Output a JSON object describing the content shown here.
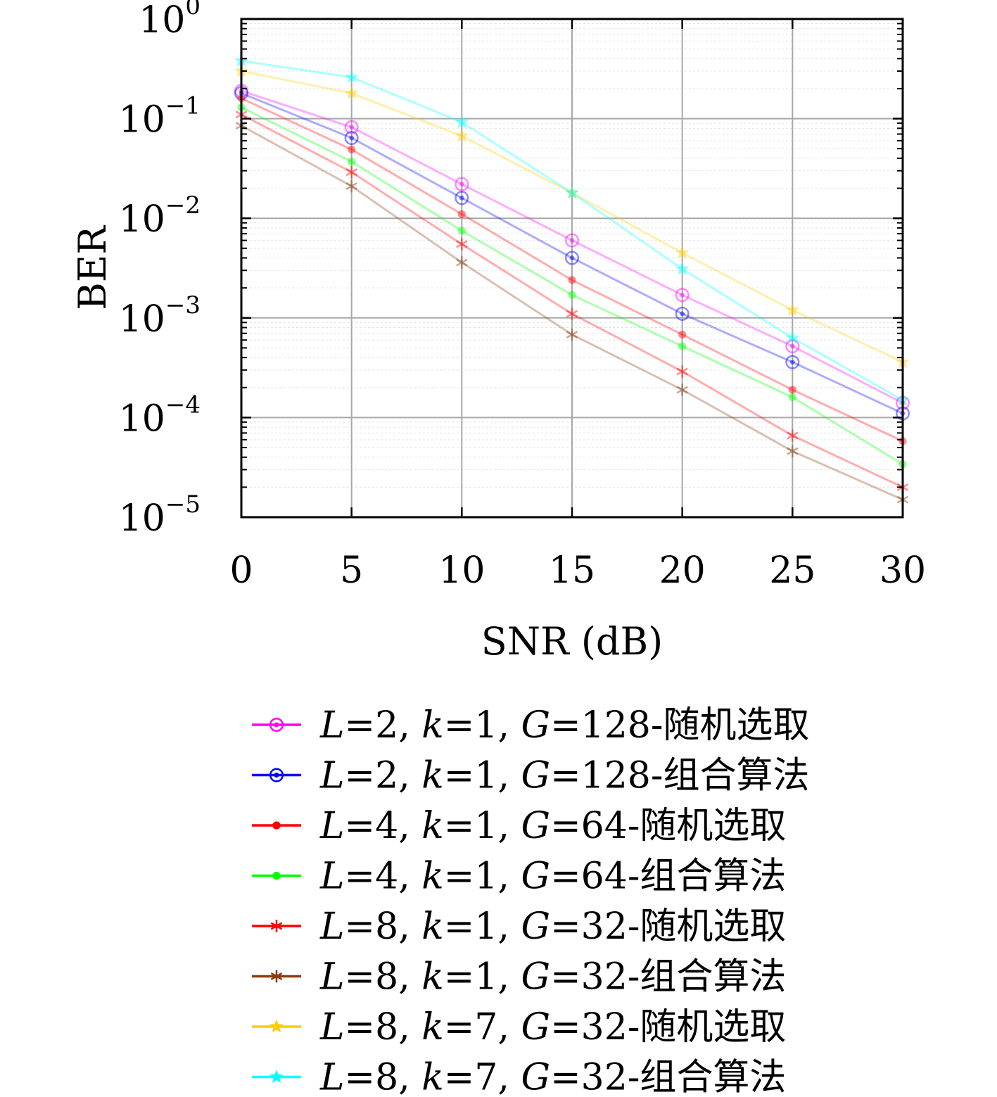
{
  "chart_data": {
    "type": "line",
    "title": "",
    "xlabel": "SNR (dB)",
    "ylabel": "BER",
    "xlim": [
      0,
      30
    ],
    "ylim": [
      1e-05,
      1
    ],
    "yscale": "log",
    "grid": true,
    "legend_position": "below",
    "x": [
      0,
      5,
      10,
      15,
      20,
      25,
      30
    ],
    "x_tick_labels": [
      "0",
      "5",
      "10",
      "15",
      "20",
      "25",
      "30"
    ],
    "y_ticks": [
      {
        "base": "10",
        "exp": "0",
        "value": 1
      },
      {
        "base": "10",
        "exp": "−1",
        "value": 0.1
      },
      {
        "base": "10",
        "exp": "−2",
        "value": 0.01
      },
      {
        "base": "10",
        "exp": "−3",
        "value": 0.001
      },
      {
        "base": "10",
        "exp": "−4",
        "value": 0.0001
      },
      {
        "base": "10",
        "exp": "−5",
        "value": 1e-05
      }
    ],
    "series": [
      {
        "name": "L=2, k=1, G=128-随机选取",
        "L": "2",
        "k": "1",
        "G": "128",
        "method": "随机选取",
        "color": "#ff00ff",
        "marker": "circle",
        "values": [
          0.19,
          0.082,
          0.022,
          0.006,
          0.0017,
          0.00052,
          0.00014
        ]
      },
      {
        "name": "L=2, k=1, G=128-组合算法",
        "L": "2",
        "k": "1",
        "G": "128",
        "method": "组合算法",
        "color": "#0000ff",
        "marker": "circle",
        "values": [
          0.18,
          0.064,
          0.016,
          0.004,
          0.0011,
          0.00036,
          0.00011
        ]
      },
      {
        "name": "L=4, k=1, G=64-随机选取",
        "L": "4",
        "k": "1",
        "G": "64",
        "method": "随机选取",
        "color": "#ff0000",
        "marker": "dot",
        "values": [
          0.16,
          0.049,
          0.011,
          0.0024,
          0.00068,
          0.00019,
          5.8e-05
        ]
      },
      {
        "name": "L=4, k=1, G=64-组合算法",
        "L": "4",
        "k": "1",
        "G": "64",
        "method": "组合算法",
        "color": "#00ff00",
        "marker": "dot",
        "values": [
          0.13,
          0.037,
          0.0075,
          0.0017,
          0.00052,
          0.00016,
          3.4e-05
        ]
      },
      {
        "name": "L=8, k=1, G=32-随机选取",
        "L": "8",
        "k": "1",
        "G": "32",
        "method": "随机选取",
        "color": "#ff0000",
        "marker": "asterisk",
        "values": [
          0.11,
          0.029,
          0.0055,
          0.0011,
          0.00029,
          6.6e-05,
          2e-05
        ]
      },
      {
        "name": "L=8, k=1, G=32-组合算法",
        "L": "8",
        "k": "1",
        "G": "32",
        "method": "组合算法",
        "color": "#8b3a0f",
        "marker": "asterisk",
        "values": [
          0.085,
          0.021,
          0.0036,
          0.00068,
          0.00019,
          4.6e-05,
          1.5e-05
        ]
      },
      {
        "name": "L=8, k=7, G=32-随机选取",
        "L": "8",
        "k": "7",
        "G": "32",
        "method": "随机选取",
        "color": "#ffcc00",
        "marker": "star",
        "values": [
          0.3,
          0.18,
          0.067,
          0.018,
          0.0045,
          0.0012,
          0.00036
        ]
      },
      {
        "name": "L=8, k=7, G=32-组合算法",
        "L": "8",
        "k": "7",
        "G": "32",
        "method": "组合算法",
        "color": "#00ffff",
        "marker": "star",
        "values": [
          0.38,
          0.26,
          0.092,
          0.018,
          0.0031,
          0.00063,
          0.00015
        ]
      }
    ]
  }
}
